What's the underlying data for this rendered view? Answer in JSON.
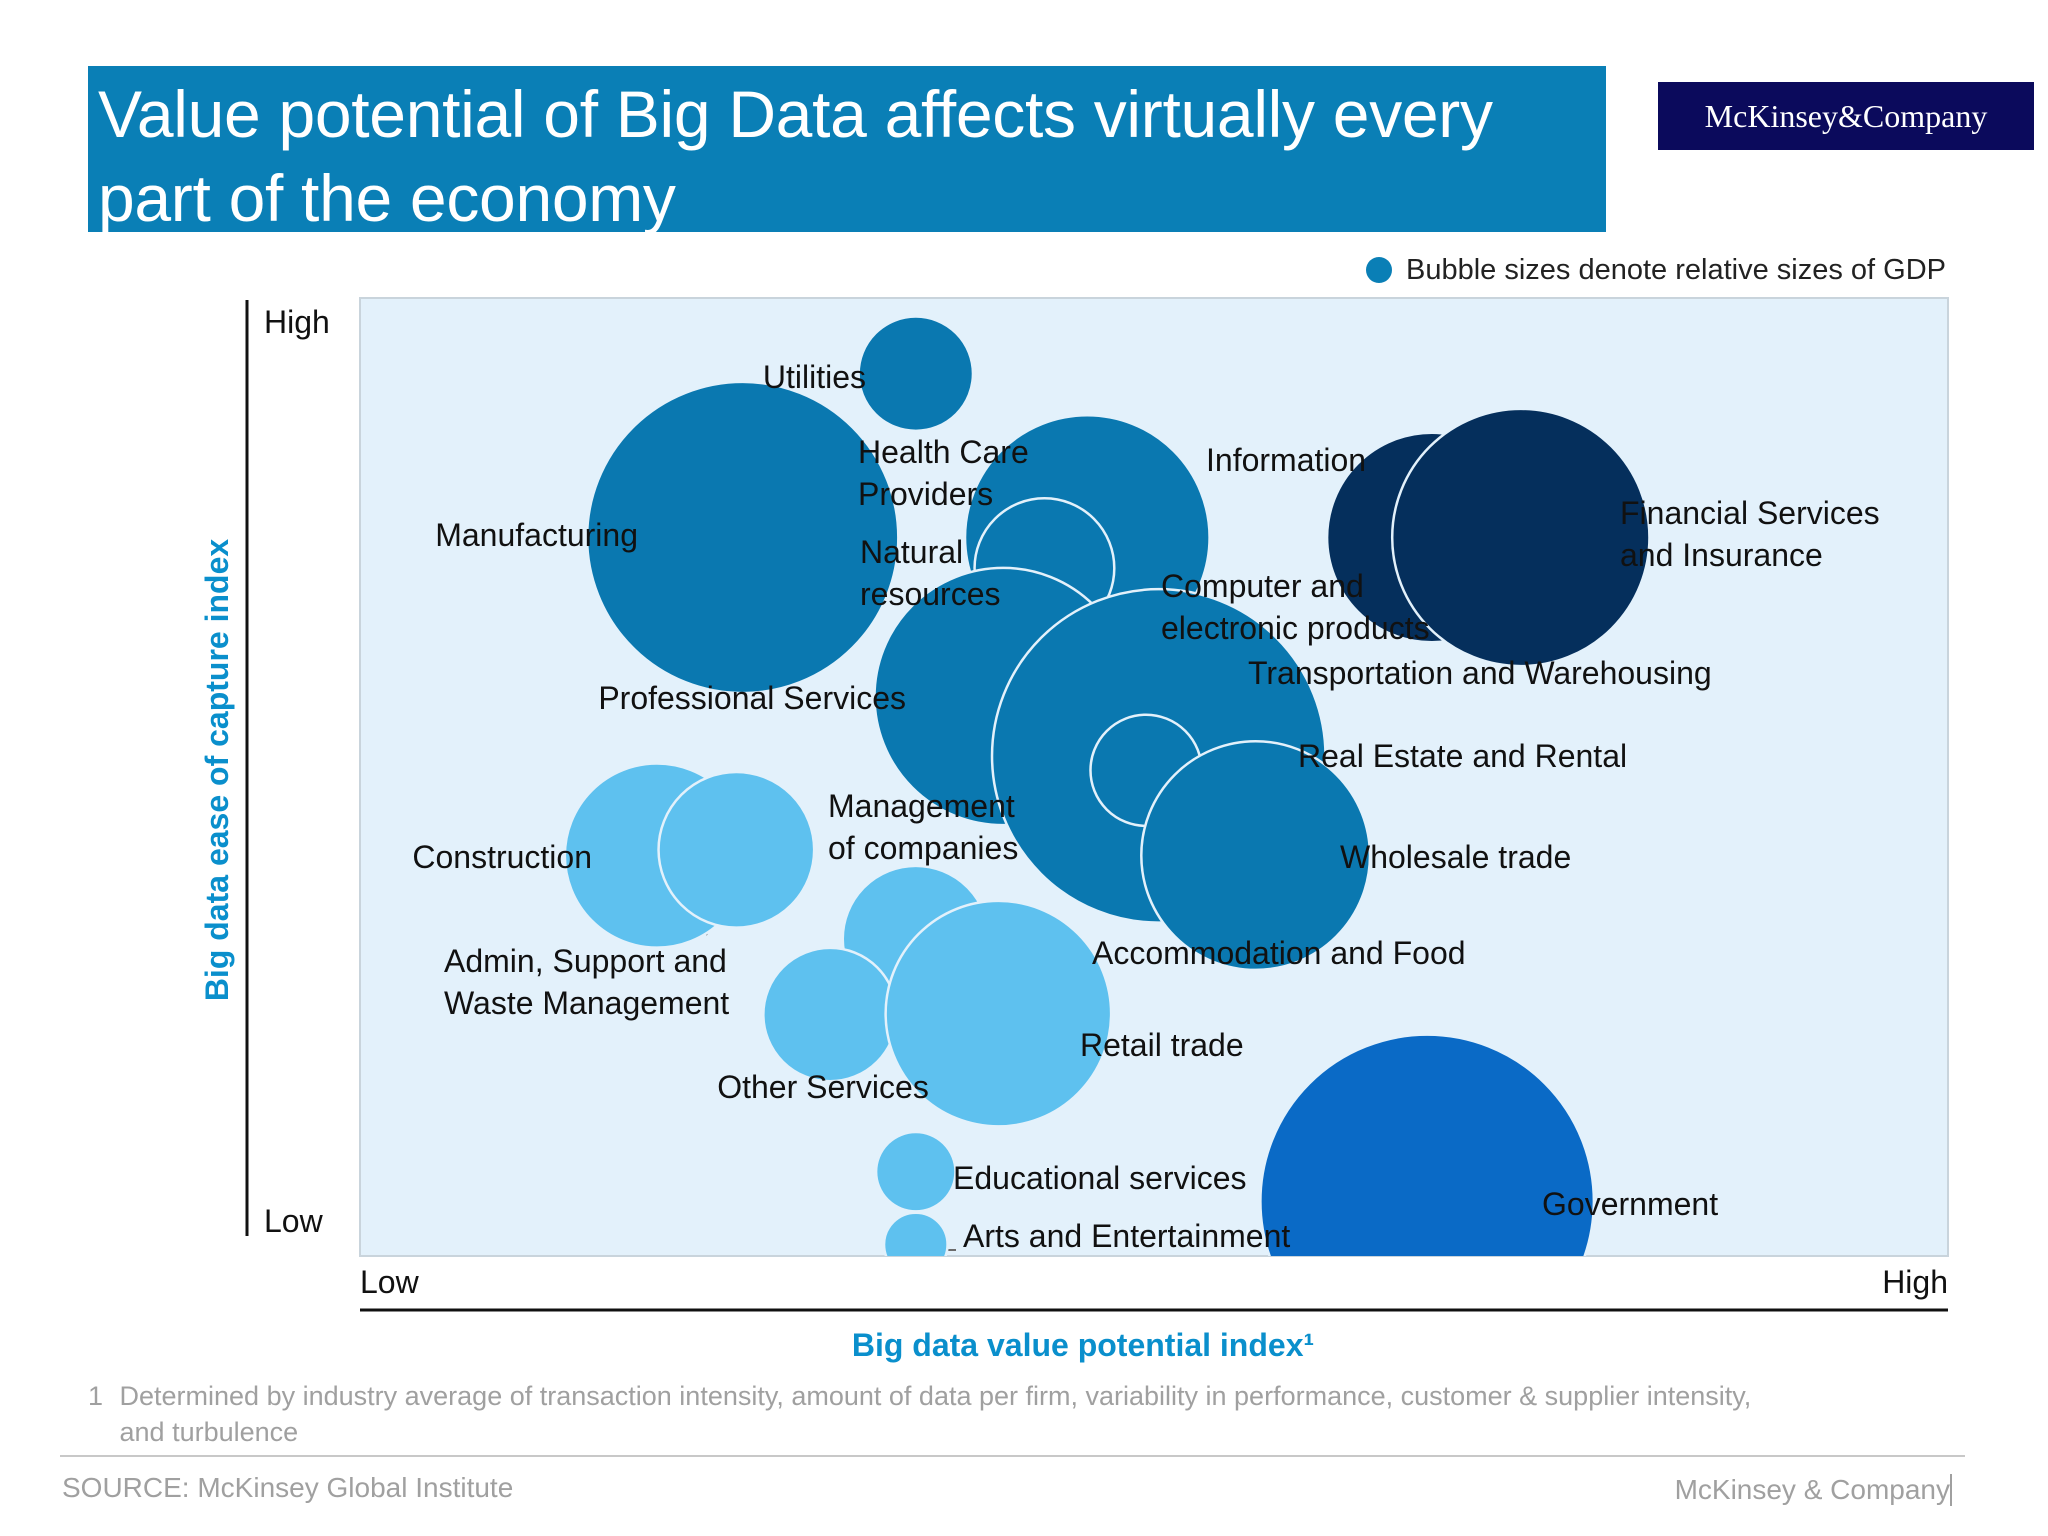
{
  "header": {
    "title_line1": "Value potential of Big Data affects virtually every",
    "title_line2": "part of the economy",
    "brand": "McKinsey&Company"
  },
  "legend": {
    "text": "Bubble sizes denote relative sizes of GDP"
  },
  "chart_data": {
    "type": "scatter",
    "title": "Value potential of Big Data affects virtually every part of the economy",
    "xlabel": "Big data value potential index¹",
    "ylabel": "Big data ease of capture index",
    "x_ticks": [
      "Low",
      "High"
    ],
    "y_ticks": [
      "Low",
      "High"
    ],
    "xlim": [
      0,
      100
    ],
    "ylim": [
      0,
      100
    ],
    "grid": false,
    "legend_position": "top-right",
    "colors": {
      "plot_bg": "#e3f1fb",
      "dark_navy": "#052f5c",
      "medium_blue": "#0a78b0",
      "light_blue": "#5ec1ef",
      "bright_blue": "#0a6ac6"
    },
    "points": [
      {
        "label": "Utilities",
        "x": 35.0,
        "y": 92.1,
        "size": 3.6,
        "color_group": "medium"
      },
      {
        "label": "Manufacturing",
        "x": 24.1,
        "y": 75.0,
        "size": 9.8,
        "color_group": "medium"
      },
      {
        "label": "Health Care Providers",
        "x": 45.8,
        "y": 75.0,
        "size": 7.7,
        "color_group": "medium"
      },
      {
        "label": "Natural resources",
        "x": 43.1,
        "y": 71.8,
        "size": 4.4,
        "color_group": "medium"
      },
      {
        "label": "Information",
        "x": 67.5,
        "y": 75.0,
        "size": 6.6,
        "color_group": "navy"
      },
      {
        "label": "Financial Services and Insurance",
        "x": 73.1,
        "y": 75.0,
        "size": 8.1,
        "color_group": "navy"
      },
      {
        "label": "Professional Services",
        "x": 40.5,
        "y": 58.4,
        "size": 8.1,
        "color_group": "medium"
      },
      {
        "label": "Computer and electronic products",
        "x": 45.8,
        "y": 58.4,
        "size": 3.9,
        "color_group": "medium"
      },
      {
        "label": "Transportation and Warehousing",
        "x": 51.3,
        "y": 58.4,
        "size": 4.9,
        "color_group": "medium"
      },
      {
        "label": "Real Estate and Rental",
        "x": 50.3,
        "y": 52.2,
        "size": 10.5,
        "color_group": "medium"
      },
      {
        "label": "Management of companies",
        "x": 49.5,
        "y": 50.7,
        "size": 3.5,
        "color_group": "medium"
      },
      {
        "label": "Wholesale trade",
        "x": 56.4,
        "y": 41.8,
        "size": 7.2,
        "color_group": "medium"
      },
      {
        "label": "Construction",
        "x": 18.7,
        "y": 41.8,
        "size": 5.8,
        "color_group": "light"
      },
      {
        "label": "Admin, Support and Waste Management",
        "x": 23.7,
        "y": 42.4,
        "size": 4.9,
        "color_group": "light"
      },
      {
        "label": "Accommodation and Food",
        "x": 35.0,
        "y": 33.1,
        "size": 4.6,
        "color_group": "light"
      },
      {
        "label": "Other Services",
        "x": 29.6,
        "y": 25.2,
        "size": 4.2,
        "color_group": "light"
      },
      {
        "label": "Retail trade",
        "x": 40.2,
        "y": 25.3,
        "size": 7.1,
        "color_group": "light"
      },
      {
        "label": "Educational services",
        "x": 35.0,
        "y": 8.8,
        "size": 2.5,
        "color_group": "light"
      },
      {
        "label": "Arts and Entertainment",
        "x": 35.0,
        "y": 1.2,
        "size": 2.0,
        "color_group": "light"
      },
      {
        "label": "Government",
        "x": 67.2,
        "y": 5.7,
        "size": 10.5,
        "color_group": "bright"
      }
    ]
  },
  "footnote": {
    "number": "1",
    "text": "Determined by industry average of transaction intensity, amount of data per firm, variability in performance, customer & supplier intensity, and turbulence"
  },
  "footer": {
    "source": "SOURCE: McKinsey Global Institute",
    "brand": "McKinsey & Company"
  }
}
